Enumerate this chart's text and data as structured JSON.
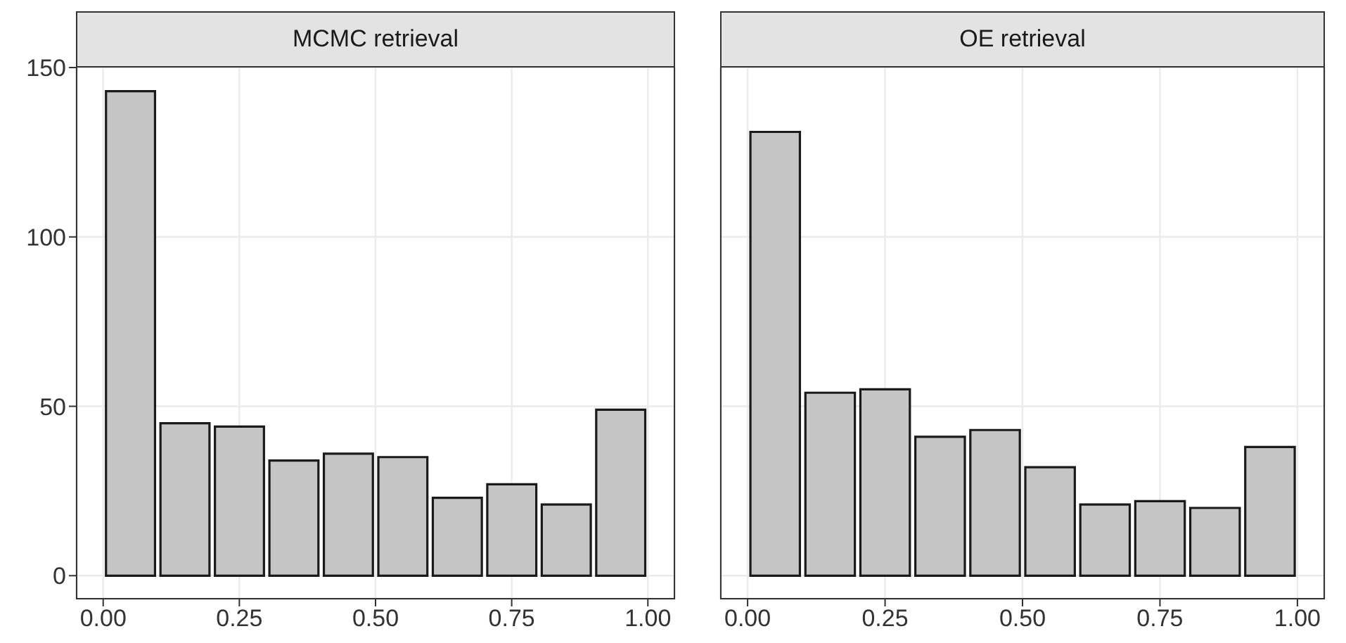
{
  "chart_data": [
    {
      "type": "histogram",
      "title": "MCMC retrieval",
      "bins": [
        0,
        0.1,
        0.2,
        0.3,
        0.4,
        0.5,
        0.6,
        0.7,
        0.8,
        0.9,
        1.0
      ],
      "values": [
        143,
        45,
        44,
        34,
        36,
        35,
        23,
        27,
        21,
        49
      ],
      "color": "#c4c5c4",
      "xlim": [
        -0.05,
        1.05
      ],
      "xticks": [
        {
          "value": 0,
          "label": "0.00"
        },
        {
          "value": 0.25,
          "label": "0.25"
        },
        {
          "value": 0.5,
          "label": "0.50"
        },
        {
          "value": 0.75,
          "label": "0.75"
        },
        {
          "value": 1,
          "label": "1.00"
        }
      ],
      "ylim": [
        -7,
        150
      ],
      "yticks": [
        0,
        50,
        100,
        150
      ],
      "grid": true
    },
    {
      "type": "histogram",
      "title": "OE retrieval",
      "bins": [
        0,
        0.1,
        0.2,
        0.3,
        0.4,
        0.5,
        0.6,
        0.7,
        0.8,
        0.9,
        1.0
      ],
      "values": [
        131,
        54,
        55,
        41,
        43,
        32,
        21,
        22,
        20,
        38
      ],
      "color": "#c4c5c4",
      "xlim": [
        -0.05,
        1.05
      ],
      "xticks": [
        {
          "value": 0,
          "label": "0.00"
        },
        {
          "value": 0.25,
          "label": "0.25"
        },
        {
          "value": 0.5,
          "label": "0.50"
        },
        {
          "value": 0.75,
          "label": "0.75"
        },
        {
          "value": 1,
          "label": "1.00"
        }
      ],
      "ylim": [
        -7,
        150
      ],
      "yticks": [
        0,
        50,
        100,
        150
      ],
      "grid": true,
      "tick_labels": "x"
    }
  ]
}
